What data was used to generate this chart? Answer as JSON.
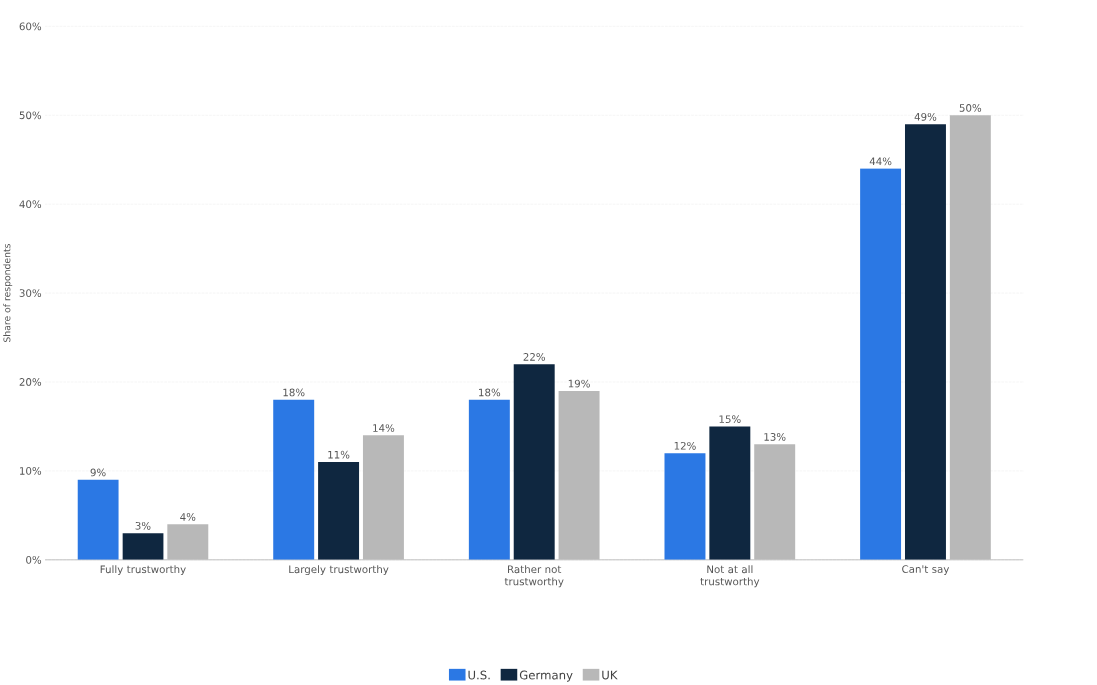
{
  "chart_data": {
    "type": "bar",
    "ylabel": "Share of respondents",
    "categories": [
      "Fully trustworthy",
      "Largely trustworthy",
      "Rather not trustworthy",
      "Not at all trustworthy",
      "Can't say"
    ],
    "series": [
      {
        "name": "U.S.",
        "color": "#2b78e4",
        "values": [
          9,
          18,
          18,
          12,
          44
        ],
        "value_labels": [
          "9%",
          "18%",
          "18%",
          "12%",
          "44%"
        ]
      },
      {
        "name": "Germany",
        "color": "#0f2740",
        "values": [
          3,
          11,
          22,
          15,
          49
        ],
        "value_labels": [
          "3%",
          "11%",
          "22%",
          "15%",
          "49%"
        ]
      },
      {
        "name": "UK",
        "color": "#b8b8b8",
        "values": [
          4,
          14,
          19,
          13,
          50
        ],
        "value_labels": [
          "4%",
          "14%",
          "19%",
          "13%",
          "50%"
        ]
      }
    ],
    "ylim": [
      0,
      60
    ],
    "yticks": [
      {
        "value": 0,
        "label": "0%"
      },
      {
        "value": 10,
        "label": "10%"
      },
      {
        "value": 20,
        "label": "20%"
      },
      {
        "value": 30,
        "label": "30%"
      },
      {
        "value": 40,
        "label": "40%"
      },
      {
        "value": 50,
        "label": "50%"
      },
      {
        "value": 60,
        "label": "60%"
      }
    ],
    "grid": "y",
    "legend": "bottom"
  }
}
